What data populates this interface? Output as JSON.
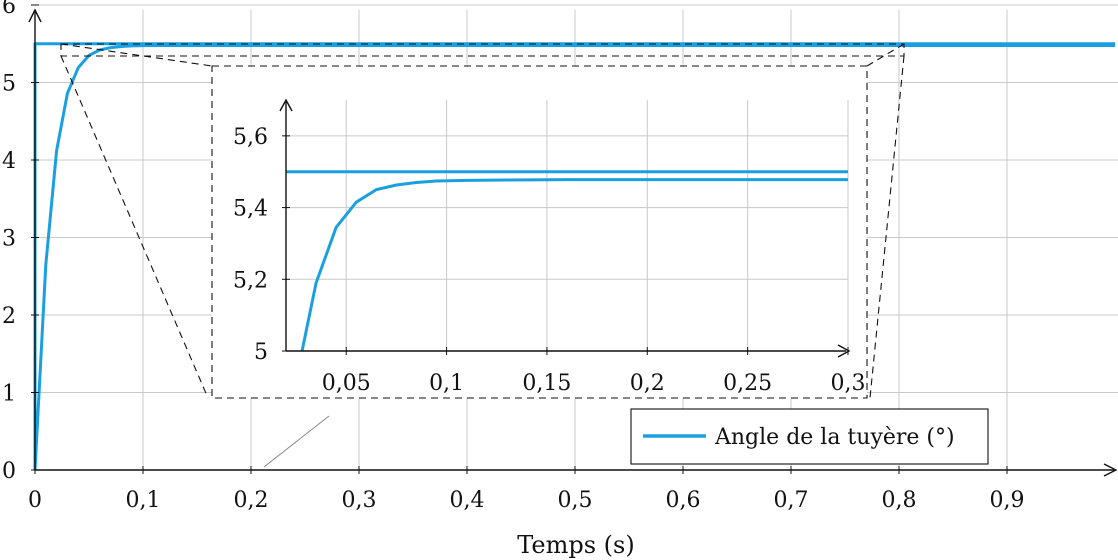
{
  "chart_data": [
    {
      "type": "line",
      "title": "",
      "xlabel": "Temps (s)",
      "ylabel": "",
      "xlim": [
        0,
        1
      ],
      "ylim": [
        0,
        6
      ],
      "grid": true,
      "legend_placement": "bottom-right",
      "x_ticks": [
        {
          "v": 0,
          "label": "0"
        },
        {
          "v": 0.1,
          "label": "0,1"
        },
        {
          "v": 0.2,
          "label": "0,2"
        },
        {
          "v": 0.3,
          "label": "0,3"
        },
        {
          "v": 0.4,
          "label": "0,4"
        },
        {
          "v": 0.5,
          "label": "0,5"
        },
        {
          "v": 0.6,
          "label": "0,6"
        },
        {
          "v": 0.7,
          "label": "0,7"
        },
        {
          "v": 0.8,
          "label": "0,8"
        },
        {
          "v": 0.9,
          "label": "0,9"
        }
      ],
      "y_ticks": [
        {
          "v": 0,
          "label": "0"
        },
        {
          "v": 1,
          "label": "1"
        },
        {
          "v": 2,
          "label": "2"
        },
        {
          "v": 3,
          "label": "3"
        },
        {
          "v": 4,
          "label": "4"
        },
        {
          "v": 5,
          "label": "5"
        },
        {
          "v": 6,
          "label": "6"
        }
      ],
      "series": [
        {
          "name": "Angle de la tuyère (°)",
          "color": "#1aa0e0",
          "x": [
            0,
            0,
            1
          ],
          "y": [
            0,
            5.5,
            5.5
          ]
        },
        {
          "color": "#1aa0e0",
          "x": [
            0,
            0.01,
            0.02,
            0.03,
            0.04,
            0.05,
            0.06,
            0.07,
            0.08,
            0.09,
            0.1,
            0.12,
            0.15,
            0.2,
            0.3,
            0.5,
            1
          ],
          "y": [
            0,
            2.65,
            4.12,
            4.86,
            5.19,
            5.35,
            5.42,
            5.45,
            5.465,
            5.472,
            5.475,
            5.477,
            5.478,
            5.478,
            5.478,
            5.478,
            5.478
          ]
        }
      ]
    },
    {
      "type": "line",
      "title": "",
      "xlabel": "",
      "ylabel": "",
      "xlim": [
        0.02,
        0.3
      ],
      "ylim": [
        5,
        5.7
      ],
      "grid": true,
      "x_ticks": [
        {
          "v": 0.05,
          "label": "0,05"
        },
        {
          "v": 0.1,
          "label": "0,1"
        },
        {
          "v": 0.15,
          "label": "0,15"
        },
        {
          "v": 0.2,
          "label": "0,2"
        },
        {
          "v": 0.25,
          "label": "0,25"
        },
        {
          "v": 0.3,
          "label": "0,3"
        }
      ],
      "y_ticks": [
        {
          "v": 5,
          "label": "5"
        },
        {
          "v": 5.2,
          "label": "5,2"
        },
        {
          "v": 5.4,
          "label": "5,4"
        },
        {
          "v": 5.6,
          "label": "5,6"
        }
      ],
      "series": [
        {
          "color": "#1aa0e0",
          "x": [
            0.02,
            0.3
          ],
          "y": [
            5.5,
            5.5
          ]
        },
        {
          "color": "#1aa0e0",
          "x": [
            0.028,
            0.035,
            0.045,
            0.055,
            0.065,
            0.075,
            0.085,
            0.095,
            0.11,
            0.13,
            0.16,
            0.2,
            0.3
          ],
          "y": [
            5.0,
            5.19,
            5.345,
            5.415,
            5.45,
            5.463,
            5.47,
            5.474,
            5.476,
            5.477,
            5.478,
            5.478,
            5.478
          ]
        }
      ]
    }
  ],
  "legend": {
    "label": "Angle de la tuyère (°)",
    "color": "#1aa0e0"
  }
}
